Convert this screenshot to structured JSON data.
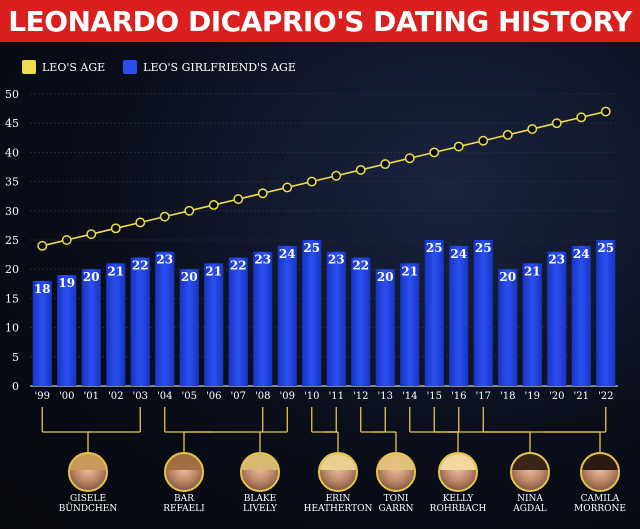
{
  "title": "LEONARDO DICAPRIO'S DATING HISTORY",
  "legend": {
    "leo": "LEO'S AGE",
    "gf": "LEO'S GIRLFRIEND'S AGE"
  },
  "colors": {
    "banner": "#d9201f",
    "leo_line": "#f0dc4a",
    "bar": "#1f3fe0",
    "connector": "#e7c64a"
  },
  "chart_data": {
    "type": "bar",
    "categories": [
      "'99",
      "'00",
      "'01",
      "'02",
      "'03",
      "'04",
      "'05",
      "'06",
      "'07",
      "'08",
      "'09",
      "'10",
      "'11",
      "'12",
      "'13",
      "'14",
      "'15",
      "'16",
      "'17",
      "'18",
      "'19",
      "'20",
      "'21",
      "'22"
    ],
    "series": [
      {
        "name": "LEO'S GIRLFRIEND'S AGE",
        "values": [
          18,
          19,
          20,
          21,
          22,
          23,
          20,
          21,
          22,
          23,
          24,
          25,
          23,
          22,
          20,
          21,
          25,
          24,
          25,
          20,
          21,
          23,
          24,
          25
        ]
      },
      {
        "name": "LEO'S AGE",
        "values": [
          24,
          25,
          26,
          27,
          28,
          29,
          30,
          31,
          32,
          33,
          34,
          35,
          36,
          37,
          38,
          39,
          40,
          41,
          42,
          43,
          44,
          45,
          46,
          47
        ]
      }
    ],
    "ylim": [
      0,
      50
    ],
    "yticks": [
      0,
      5,
      10,
      15,
      20,
      25,
      30,
      35,
      40,
      45,
      50
    ],
    "grid": true
  },
  "girlfriends": [
    {
      "name": "GISELE BÜNDCHEN",
      "lines": [
        "GISELE",
        "BÜNDCHEN"
      ],
      "from": 0,
      "to": 4
    },
    {
      "name": "BAR REFAELI",
      "lines": [
        "BAR",
        "REFAELI"
      ],
      "from": 5,
      "to": 9
    },
    {
      "name": "BLAKE LIVELY",
      "lines": [
        "BLAKE",
        "LIVELY"
      ],
      "from": 10,
      "to": 10
    },
    {
      "name": "ERIN HEATHERTON",
      "lines": [
        "ERIN",
        "HEATHERTON"
      ],
      "from": 11,
      "to": 12
    },
    {
      "name": "TONI GARRN",
      "lines": [
        "TONI",
        "GARRN"
      ],
      "from": 13,
      "to": 14
    },
    {
      "name": "KELLY ROHRBACH",
      "lines": [
        "KELLY",
        "ROHRBACH"
      ],
      "from": 15,
      "to": 15
    },
    {
      "name": "NINA AGDAL",
      "lines": [
        "NINA",
        "AGDAL"
      ],
      "from": 16,
      "to": 17
    },
    {
      "name": "CAMILA MORRONE",
      "lines": [
        "CAMILA",
        "MORRONE"
      ],
      "from": 18,
      "to": 23
    }
  ]
}
